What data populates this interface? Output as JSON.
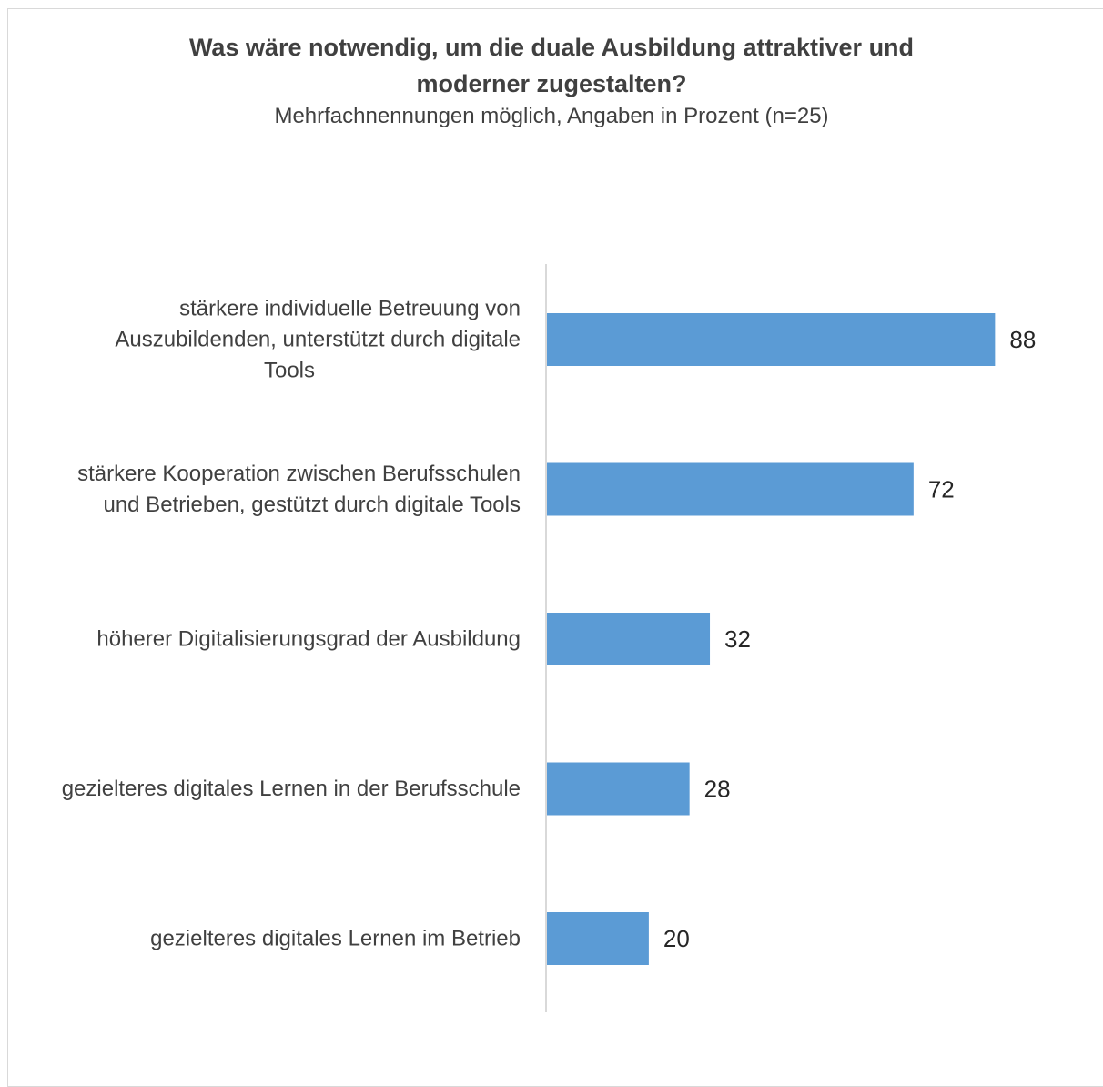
{
  "chart_data": {
    "type": "bar",
    "orientation": "horizontal",
    "title": "Was wäre notwendig, um die duale Ausbildung attraktiver und moderner zugestalten?",
    "subtitle": "Mehrfachnennungen möglich, Angaben in Prozent (n=25)",
    "categories": [
      [
        "stärkere individuelle Betreuung von",
        "Auszubildenden, unterstützt durch digitale",
        "Tools"
      ],
      [
        "stärkere Kooperation zwischen Berufsschulen",
        "und Betrieben, gestützt durch digitale Tools"
      ],
      [
        "höherer Digitalisierungsgrad der Ausbildung"
      ],
      [
        "gezielteres digitales Lernen in der Berufsschule"
      ],
      [
        "gezielteres digitales Lernen im Betrieb"
      ]
    ],
    "values": [
      88,
      72,
      32,
      28,
      20
    ],
    "value_labels": [
      "88",
      "72",
      "32",
      "28",
      "20"
    ],
    "bar_color": "#5b9bd5",
    "axis_line_color": "#d9d9d9",
    "xlim": [
      0,
      100
    ],
    "grid": false,
    "legend": "none",
    "data_labels": true
  }
}
